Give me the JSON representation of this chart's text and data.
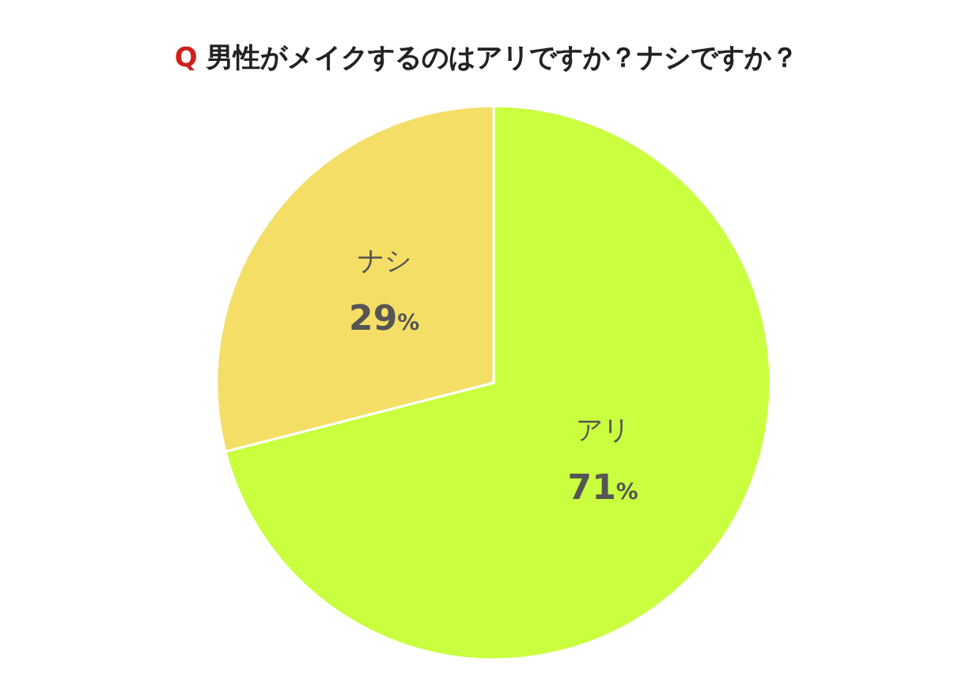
{
  "chart_data": {
    "type": "pie",
    "title": "Q 男性がメイクするのはアリですか？ナシですか？",
    "categories": [
      "アリ",
      "ナシ"
    ],
    "values": [
      71,
      29
    ],
    "colors": [
      "#c9ff3f",
      "#f5de66"
    ],
    "value_labels": [
      "71%",
      "29%"
    ]
  }
}
